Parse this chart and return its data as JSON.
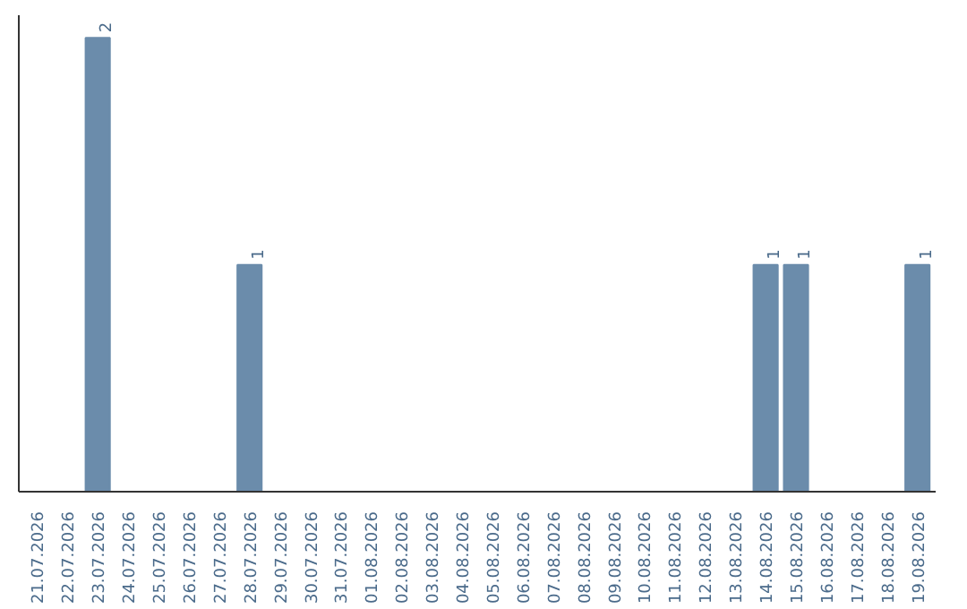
{
  "chart_data": {
    "type": "bar",
    "categories": [
      "21.07.2026",
      "22.07.2026",
      "23.07.2026",
      "24.07.2026",
      "25.07.2026",
      "26.07.2026",
      "27.07.2026",
      "28.07.2026",
      "29.07.2026",
      "30.07.2026",
      "31.07.2026",
      "01.08.2026",
      "02.08.2026",
      "03.08.2026",
      "04.08.2026",
      "05.08.2026",
      "06.08.2026",
      "07.08.2026",
      "08.08.2026",
      "09.08.2026",
      "10.08.2026",
      "11.08.2026",
      "12.08.2026",
      "13.08.2026",
      "14.08.2026",
      "15.08.2026",
      "16.08.2026",
      "17.08.2026",
      "18.08.2026",
      "19.08.2026"
    ],
    "values": [
      0,
      0,
      2,
      0,
      0,
      0,
      0,
      1,
      0,
      0,
      0,
      0,
      0,
      0,
      0,
      0,
      0,
      0,
      0,
      0,
      0,
      0,
      0,
      0,
      1,
      1,
      0,
      0,
      0,
      1
    ],
    "value_labels": [
      null,
      null,
      "2",
      null,
      null,
      null,
      null,
      "1",
      null,
      null,
      null,
      null,
      null,
      null,
      null,
      null,
      null,
      null,
      null,
      null,
      null,
      null,
      null,
      null,
      "1",
      "1",
      null,
      null,
      null,
      "1"
    ],
    "color": "#6b8cab",
    "ylim": [
      0,
      2.1
    ],
    "tick_labels": "x",
    "grid": false
  }
}
